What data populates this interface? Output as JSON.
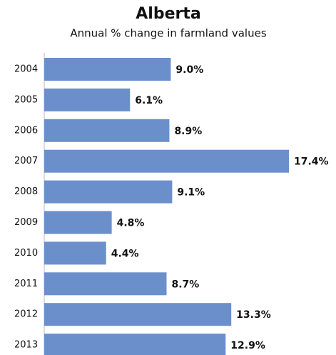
{
  "chart_data": {
    "type": "barh",
    "title": "Alberta",
    "subtitle": "Annual % change in farmland values",
    "categories": [
      "2004",
      "2005",
      "2006",
      "2007",
      "2008",
      "2009",
      "2010",
      "2011",
      "2012",
      "2013"
    ],
    "values": [
      9.0,
      6.1,
      8.9,
      17.4,
      9.1,
      4.8,
      4.4,
      8.7,
      13.3,
      12.9
    ],
    "value_labels": [
      "9.0%",
      "6.1%",
      "8.9%",
      "17.4%",
      "9.1%",
      "4.8%",
      "4.4%",
      "8.7%",
      "13.3%",
      "12.9%"
    ],
    "color": "#6b8fcb"
  }
}
